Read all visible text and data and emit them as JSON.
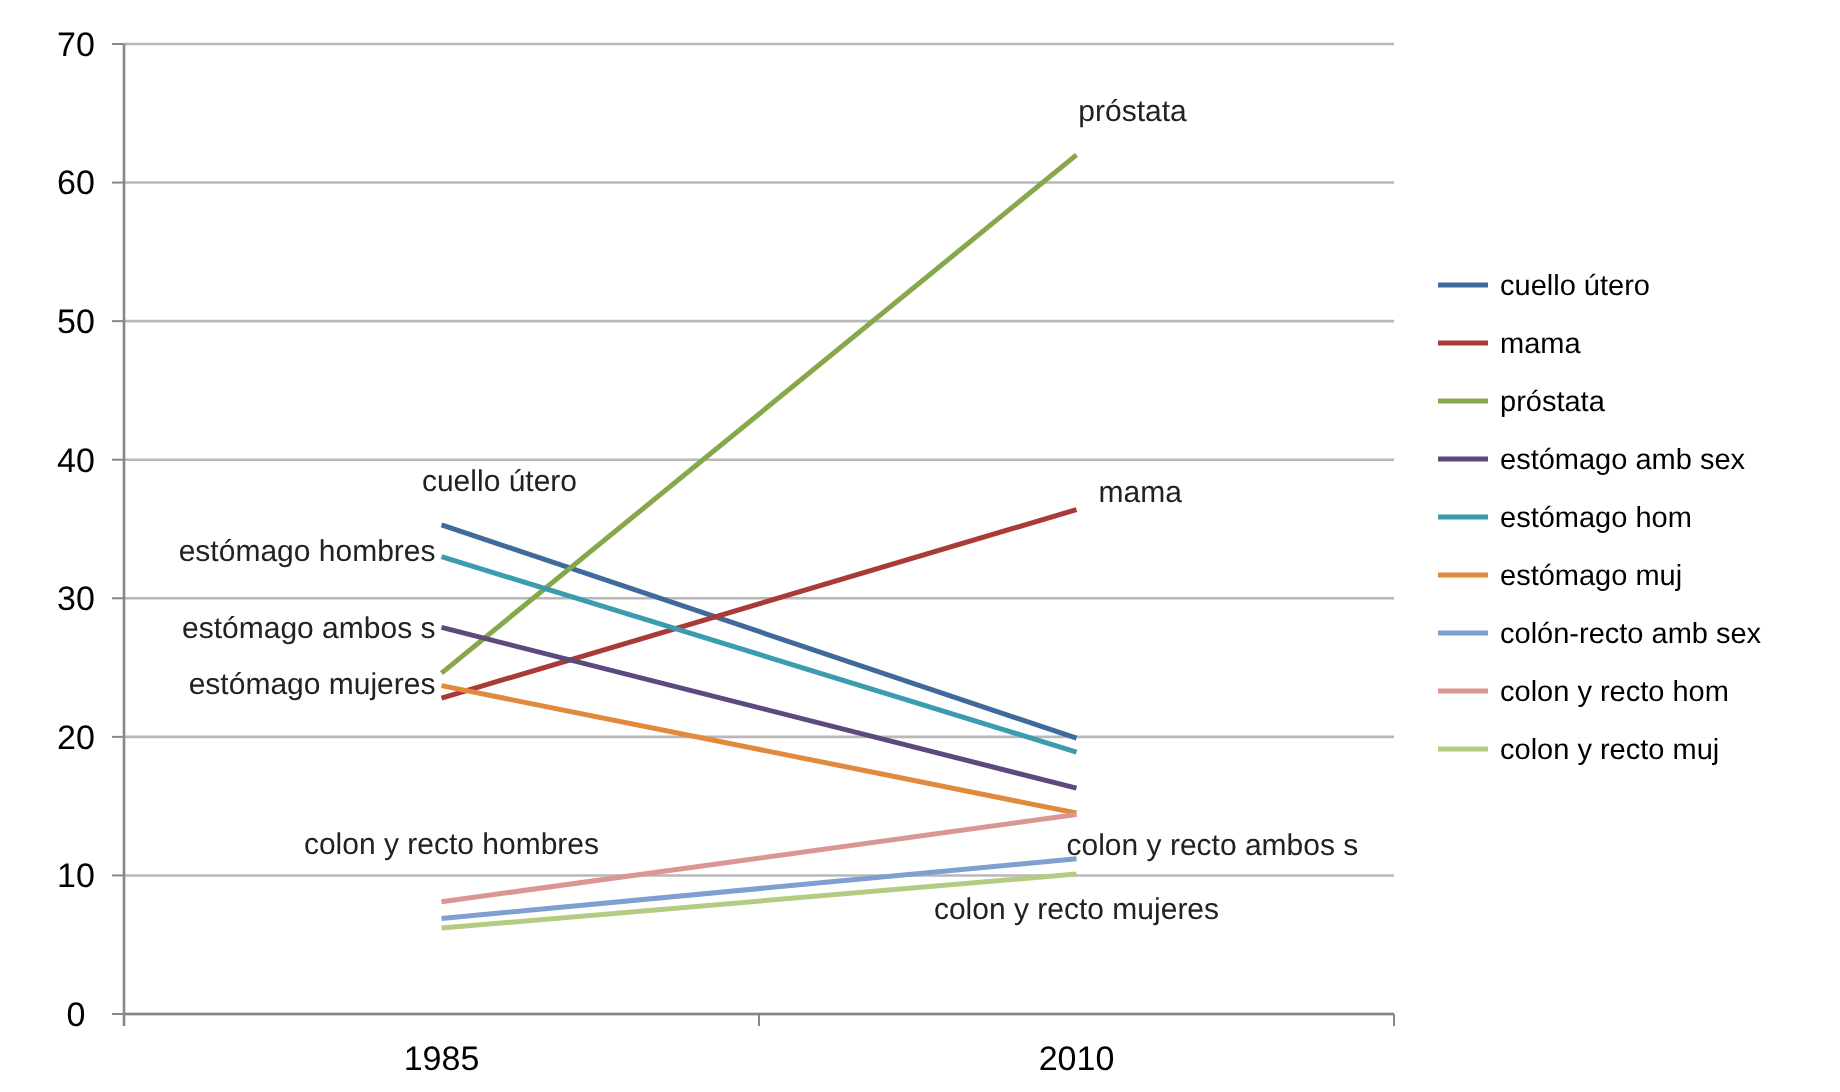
{
  "chart_data": {
    "type": "line",
    "categories": [
      "1985",
      "2010"
    ],
    "series": [
      {
        "name": "cuello útero",
        "color": "#3f6a9c",
        "values": [
          35.3,
          19.9
        ]
      },
      {
        "name": "mama",
        "color": "#a83b38",
        "values": [
          22.8,
          36.4
        ]
      },
      {
        "name": "próstata",
        "color": "#86a84a",
        "values": [
          24.6,
          62.0
        ]
      },
      {
        "name": "estómago amb sex",
        "color": "#5c4a7e",
        "values": [
          27.9,
          16.3
        ]
      },
      {
        "name": "estómago hom",
        "color": "#3b9cb0",
        "values": [
          33.0,
          18.9
        ]
      },
      {
        "name": "estómago muj",
        "color": "#e08a3c",
        "values": [
          23.7,
          14.5
        ]
      },
      {
        "name": "colón-recto amb sex",
        "color": "#7f9fd0",
        "values": [
          6.9,
          11.2
        ]
      },
      {
        "name": "colon y recto hom",
        "color": "#d99694",
        "values": [
          8.1,
          14.4
        ]
      },
      {
        "name": "colon y recto muj",
        "color": "#b3cc82",
        "values": [
          6.2,
          10.1
        ]
      }
    ],
    "annotations": [
      {
        "text": "próstata",
        "x": "2010",
        "y": 62.0
      },
      {
        "text": "mama",
        "x": "2010",
        "y": 36.4
      },
      {
        "text": "cuello útero",
        "x": "1985",
        "y": 35.3
      },
      {
        "text": "estómago hombres",
        "x": "1985",
        "y": 33.0
      },
      {
        "text": "estómago ambos s",
        "x": "1985",
        "y": 27.9
      },
      {
        "text": "estómago mujeres",
        "x": "1985",
        "y": 23.7
      },
      {
        "text": "colon y recto hombres",
        "x": "1985",
        "y": 8.1
      },
      {
        "text": "colon y recto ambos s",
        "x": "2010",
        "y": 11.2
      },
      {
        "text": "colon y recto mujeres",
        "x": "2010",
        "y": 10.1
      }
    ],
    "ylim": [
      0,
      70
    ],
    "yticks": [
      0,
      10,
      20,
      30,
      40,
      50,
      60,
      70
    ],
    "grid": "y",
    "legend": "right",
    "marker": "none",
    "line_style": "solid"
  }
}
